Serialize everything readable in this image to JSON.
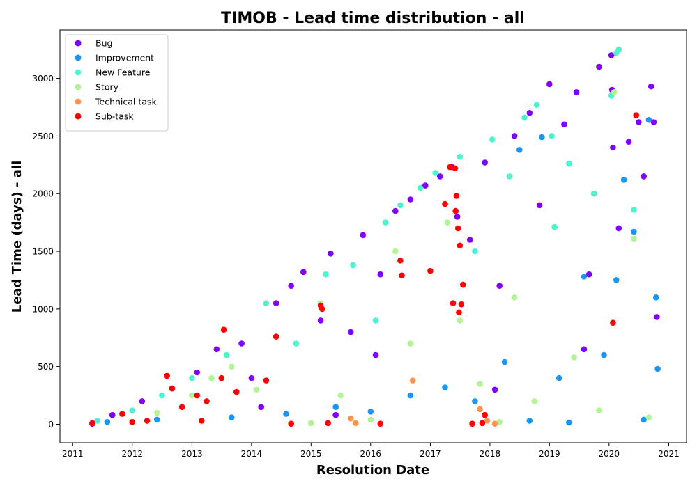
{
  "chart_data": {
    "type": "scatter",
    "title": "TIMOB - Lead time distribution - all",
    "xlabel": "Resolution Date",
    "ylabel": "Lead Time (days) - all",
    "xlim": [
      "2010-10-15",
      "2021-04-20"
    ],
    "ylim": [
      -160,
      3420
    ],
    "x_ticks": [
      "2011",
      "2012",
      "2013",
      "2014",
      "2015",
      "2016",
      "2017",
      "2018",
      "2019",
      "2020",
      "2021"
    ],
    "y_ticks": [
      0,
      500,
      1000,
      1500,
      2000,
      2500,
      3000
    ],
    "grid": false,
    "legend_placement": "upper-left",
    "series": [
      {
        "name": "Bug",
        "color": "#8000ff",
        "points": [
          [
            "2011-05-01",
            5
          ],
          [
            "2011-09-01",
            80
          ],
          [
            "2012-03-01",
            200
          ],
          [
            "2012-09-01",
            310
          ],
          [
            "2013-02-01",
            450
          ],
          [
            "2013-06-01",
            650
          ],
          [
            "2013-11-01",
            700
          ],
          [
            "2014-01-01",
            400
          ],
          [
            "2014-06-01",
            1050
          ],
          [
            "2014-09-01",
            1200
          ],
          [
            "2014-11-15",
            1320
          ],
          [
            "2015-03-01",
            900
          ],
          [
            "2015-05-01",
            1480
          ],
          [
            "2015-09-01",
            800
          ],
          [
            "2015-11-15",
            1640
          ],
          [
            "2016-03-01",
            1300
          ],
          [
            "2016-06-01",
            1850
          ],
          [
            "2016-09-01",
            1950
          ],
          [
            "2016-12-01",
            2070
          ],
          [
            "2017-03-01",
            2150
          ],
          [
            "2017-05-15",
            2230
          ],
          [
            "2017-06-15",
            1800
          ],
          [
            "2017-09-01",
            1600
          ],
          [
            "2017-12-01",
            2270
          ],
          [
            "2018-03-01",
            1200
          ],
          [
            "2018-06-01",
            2500
          ],
          [
            "2018-09-01",
            2700
          ],
          [
            "2018-11-01",
            1900
          ],
          [
            "2019-01-01",
            2950
          ],
          [
            "2019-04-01",
            2600
          ],
          [
            "2019-06-15",
            2880
          ],
          [
            "2019-09-01",
            1300
          ],
          [
            "2019-11-01",
            3100
          ],
          [
            "2020-01-15",
            3200
          ],
          [
            "2020-01-20",
            2900
          ],
          [
            "2020-01-25",
            2400
          ],
          [
            "2020-03-01",
            1700
          ],
          [
            "2020-05-01",
            2450
          ],
          [
            "2020-07-01",
            2620
          ],
          [
            "2020-09-15",
            2930
          ],
          [
            "2020-10-01",
            2620
          ],
          [
            "2020-10-20",
            930
          ],
          [
            "2020-08-01",
            2150
          ],
          [
            "2019-08-01",
            650
          ],
          [
            "2018-02-01",
            300
          ],
          [
            "2016-02-01",
            600
          ],
          [
            "2014-03-01",
            150
          ],
          [
            "2015-06-01",
            80
          ]
        ]
      },
      {
        "name": "Improvement",
        "color": "#1996f3",
        "points": [
          [
            "2011-08-01",
            20
          ],
          [
            "2012-06-01",
            40
          ],
          [
            "2013-09-01",
            60
          ],
          [
            "2014-08-01",
            90
          ],
          [
            "2015-06-01",
            150
          ],
          [
            "2016-01-01",
            110
          ],
          [
            "2016-09-01",
            250
          ],
          [
            "2017-04-01",
            320
          ],
          [
            "2017-10-01",
            200
          ],
          [
            "2018-04-01",
            540
          ],
          [
            "2018-07-01",
            2380
          ],
          [
            "2018-11-15",
            2490
          ],
          [
            "2019-03-01",
            400
          ],
          [
            "2019-08-01",
            1280
          ],
          [
            "2019-12-01",
            600
          ],
          [
            "2020-02-15",
            1250
          ],
          [
            "2020-04-01",
            2120
          ],
          [
            "2020-06-01",
            1670
          ],
          [
            "2020-09-01",
            2640
          ],
          [
            "2020-10-15",
            1100
          ],
          [
            "2020-10-25",
            480
          ],
          [
            "2020-08-01",
            40
          ],
          [
            "2019-05-01",
            15
          ],
          [
            "2018-09-01",
            30
          ]
        ]
      },
      {
        "name": "New Feature",
        "color": "#4df3ce",
        "points": [
          [
            "2011-06-01",
            30
          ],
          [
            "2012-01-01",
            120
          ],
          [
            "2012-07-01",
            250
          ],
          [
            "2013-01-01",
            400
          ],
          [
            "2013-08-01",
            600
          ],
          [
            "2014-04-01",
            1050
          ],
          [
            "2014-10-01",
            700
          ],
          [
            "2015-04-01",
            1300
          ],
          [
            "2015-09-15",
            1380
          ],
          [
            "2016-04-01",
            1750
          ],
          [
            "2016-07-01",
            1900
          ],
          [
            "2016-11-01",
            2050
          ],
          [
            "2017-02-01",
            2180
          ],
          [
            "2017-07-01",
            2320
          ],
          [
            "2017-10-01",
            1500
          ],
          [
            "2018-01-15",
            2470
          ],
          [
            "2018-05-01",
            2150
          ],
          [
            "2018-08-01",
            2660
          ],
          [
            "2018-10-15",
            2770
          ],
          [
            "2019-01-15",
            2500
          ],
          [
            "2019-05-01",
            2260
          ],
          [
            "2019-10-01",
            2000
          ],
          [
            "2020-01-15",
            2850
          ],
          [
            "2020-02-15",
            3220
          ],
          [
            "2020-03-01",
            3250
          ],
          [
            "2020-06-01",
            1860
          ],
          [
            "2019-02-01",
            1710
          ],
          [
            "2016-02-01",
            900
          ]
        ]
      },
      {
        "name": "Story",
        "color": "#b2f396",
        "points": [
          [
            "2012-06-01",
            100
          ],
          [
            "2013-01-01",
            250
          ],
          [
            "2013-05-01",
            400
          ],
          [
            "2013-09-01",
            500
          ],
          [
            "2014-02-01",
            300
          ],
          [
            "2015-03-01",
            1050
          ],
          [
            "2015-07-01",
            250
          ],
          [
            "2016-06-01",
            1500
          ],
          [
            "2016-09-01",
            700
          ],
          [
            "2017-04-15",
            1750
          ],
          [
            "2017-07-01",
            900
          ],
          [
            "2017-11-01",
            350
          ],
          [
            "2018-06-01",
            1100
          ],
          [
            "2018-10-01",
            200
          ],
          [
            "2019-06-01",
            580
          ],
          [
            "2019-11-01",
            120
          ],
          [
            "2020-02-01",
            2880
          ],
          [
            "2020-06-01",
            1610
          ],
          [
            "2020-09-01",
            60
          ],
          [
            "2018-03-01",
            20
          ],
          [
            "2016-01-01",
            40
          ],
          [
            "2015-01-01",
            10
          ]
        ]
      },
      {
        "name": "Technical task",
        "color": "#ff964f",
        "points": [
          [
            "2015-09-01",
            50
          ],
          [
            "2016-09-15",
            380
          ],
          [
            "2017-11-01",
            130
          ],
          [
            "2017-12-15",
            30
          ],
          [
            "2015-10-01",
            10
          ],
          [
            "2018-02-01",
            5
          ]
        ]
      },
      {
        "name": "Sub-task",
        "color": "#ff0000",
        "points": [
          [
            "2011-05-01",
            10
          ],
          [
            "2011-11-01",
            90
          ],
          [
            "2012-04-01",
            30
          ],
          [
            "2012-08-01",
            420
          ],
          [
            "2012-09-01",
            310
          ],
          [
            "2012-11-01",
            150
          ],
          [
            "2013-02-01",
            250
          ],
          [
            "2013-04-01",
            200
          ],
          [
            "2013-07-01",
            400
          ],
          [
            "2013-07-15",
            820
          ],
          [
            "2013-10-01",
            280
          ],
          [
            "2014-04-01",
            380
          ],
          [
            "2014-06-01",
            760
          ],
          [
            "2015-03-01",
            1030
          ],
          [
            "2015-03-10",
            1000
          ],
          [
            "2015-04-15",
            10
          ],
          [
            "2016-07-01",
            1420
          ],
          [
            "2016-07-10",
            1290
          ],
          [
            "2017-01-01",
            1330
          ],
          [
            "2017-04-01",
            1910
          ],
          [
            "2017-05-01",
            2230
          ],
          [
            "2017-06-01",
            2220
          ],
          [
            "2017-06-10",
            1980
          ],
          [
            "2017-06-20",
            1700
          ],
          [
            "2017-06-05",
            1850
          ],
          [
            "2017-07-01",
            1550
          ],
          [
            "2017-05-20",
            1050
          ],
          [
            "2017-06-25",
            970
          ],
          [
            "2017-07-10",
            1040
          ],
          [
            "2017-07-20",
            1210
          ],
          [
            "2017-09-15",
            5
          ],
          [
            "2017-11-15",
            10
          ],
          [
            "2017-12-01",
            80
          ],
          [
            "2020-01-25",
            880
          ],
          [
            "2020-06-15",
            2680
          ],
          [
            "2013-03-01",
            30
          ],
          [
            "2012-01-01",
            20
          ],
          [
            "2014-09-01",
            5
          ],
          [
            "2016-03-01",
            5
          ]
        ]
      }
    ]
  }
}
